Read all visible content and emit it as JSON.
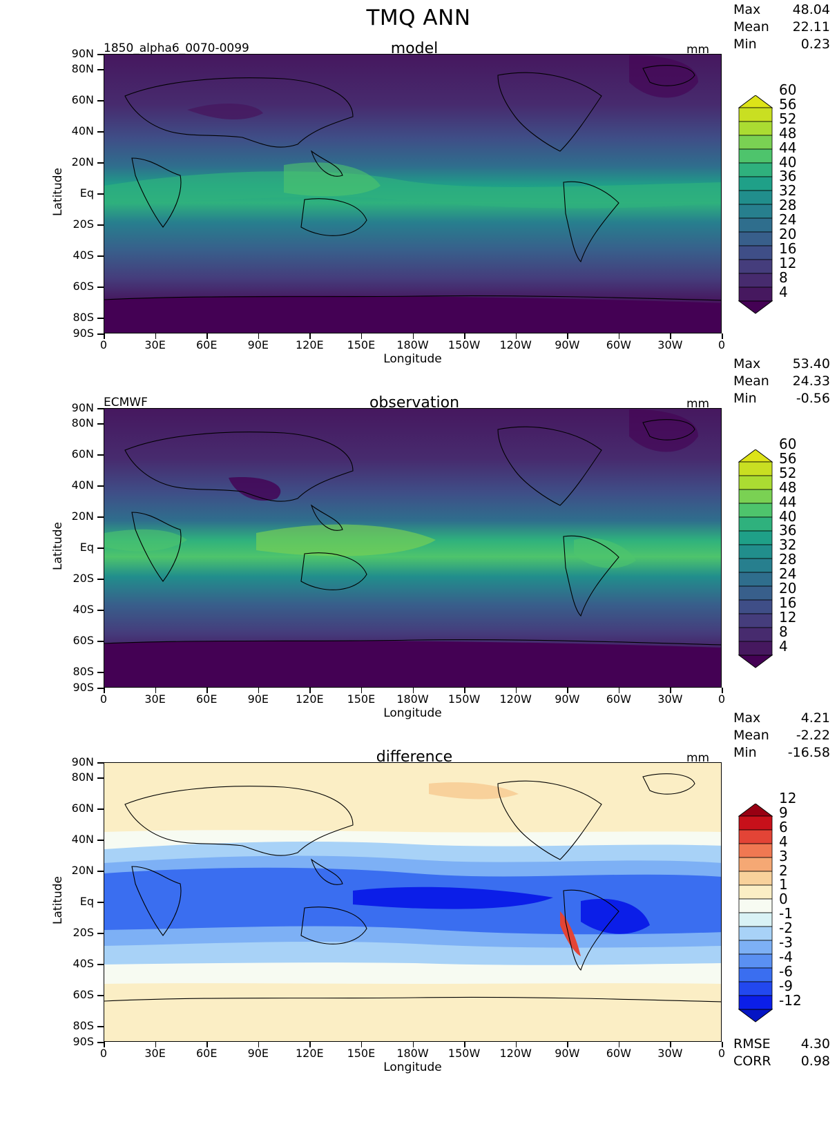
{
  "figure": {
    "title": "TMQ ANN"
  },
  "panels": [
    {
      "id": "model",
      "name": "model",
      "left_label": "1850_alpha6_0070-0099",
      "units": "mm",
      "stats": {
        "max_label": "Max",
        "max": "48.04",
        "mean_label": "Mean",
        "mean": "22.11",
        "min_label": "Min",
        "min": "0.23"
      },
      "colorbar_labels": [
        "60",
        "56",
        "52",
        "48",
        "44",
        "40",
        "36",
        "32",
        "28",
        "24",
        "20",
        "16",
        "12",
        "8",
        "4"
      ],
      "xlabel": "Longitude",
      "ylabel": "Latitude"
    },
    {
      "id": "observation",
      "name": "observation",
      "left_label": "ECMWF",
      "units": "mm",
      "stats": {
        "max_label": "Max",
        "max": "53.40",
        "mean_label": "Mean",
        "mean": "24.33",
        "min_label": "Min",
        "min": "-0.56"
      },
      "colorbar_labels": [
        "60",
        "56",
        "52",
        "48",
        "44",
        "40",
        "36",
        "32",
        "28",
        "24",
        "20",
        "16",
        "12",
        "8",
        "4"
      ],
      "xlabel": "Longitude",
      "ylabel": "Latitude"
    },
    {
      "id": "difference",
      "name": "difference",
      "left_label": "",
      "units": "mm",
      "stats": {
        "max_label": "Max",
        "max": "4.21",
        "mean_label": "Mean",
        "mean": "-2.22",
        "min_label": "Min",
        "min": "-16.58"
      },
      "colorbar_labels": [
        "12",
        "9",
        "6",
        "4",
        "3",
        "2",
        "1",
        "0",
        "-1",
        "-2",
        "-3",
        "-4",
        "-6",
        "-9",
        "-12"
      ],
      "xlabel": "Longitude",
      "ylabel": "Latitude"
    }
  ],
  "yticks": [
    "90N",
    "80N",
    "60N",
    "40N",
    "20N",
    "Eq",
    "20S",
    "40S",
    "60S",
    "80S",
    "90S"
  ],
  "xticks": [
    "0",
    "30E",
    "60E",
    "90E",
    "120E",
    "150E",
    "180W",
    "150W",
    "120W",
    "90W",
    "60W",
    "30W",
    "0"
  ],
  "footer": {
    "rmse_label": "RMSE",
    "rmse": "4.30",
    "corr_label": "CORR",
    "corr": "0.98"
  },
  "colors": {
    "viridis": [
      "#440154",
      "#46185f",
      "#472b6e",
      "#453d7c",
      "#3f4e87",
      "#385f8b",
      "#2f6e8d",
      "#277f8e",
      "#218e8c",
      "#1fa088",
      "#2fb17d",
      "#4ec46c",
      "#7ad153",
      "#abdc32",
      "#dde318"
    ],
    "diverging": [
      "#0b1ee8",
      "#2248ef",
      "#3a6ef0",
      "#5a90f2",
      "#7db0f5",
      "#a8d2f7",
      "#d9f2f5",
      "#f7fbf2",
      "#fbeec5",
      "#f8d19b",
      "#f5a874",
      "#f07852",
      "#e34436",
      "#c7101a",
      "#980012"
    ]
  }
}
